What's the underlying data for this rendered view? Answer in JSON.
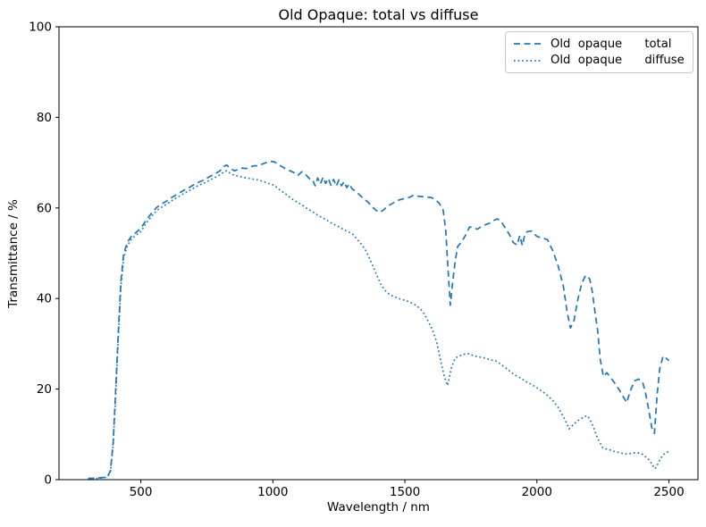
{
  "figure": {
    "background": "#ffffff",
    "text_color": "#000000",
    "spine_color": "#000000",
    "legend_border_color": "#c9c9c9"
  },
  "chart_data": {
    "type": "line",
    "title": "Old Opaque: total vs diffuse",
    "xlabel": "Wavelength / nm",
    "ylabel": "Transmittance / %",
    "xlim": [
      190,
      2610
    ],
    "ylim": [
      0,
      100
    ],
    "x_ticks": [
      500,
      1000,
      1500,
      2000,
      2500
    ],
    "y_ticks": [
      0,
      20,
      40,
      60,
      80,
      100
    ],
    "grid": false,
    "legend_position": "upper right",
    "series": [
      {
        "name": "Old  opaque      total",
        "style": "dashed",
        "color": "#1f77b4",
        "x": [
          300,
          320,
          340,
          360,
          375,
          385,
          395,
          405,
          415,
          425,
          435,
          450,
          465,
          480,
          500,
          520,
          540,
          560,
          580,
          600,
          620,
          640,
          660,
          680,
          700,
          720,
          740,
          760,
          780,
          800,
          815,
          825,
          840,
          855,
          870,
          885,
          900,
          915,
          930,
          945,
          960,
          975,
          990,
          1005,
          1020,
          1035,
          1050,
          1065,
          1080,
          1095,
          1110,
          1125,
          1140,
          1150,
          1160,
          1170,
          1180,
          1190,
          1200,
          1210,
          1220,
          1230,
          1240,
          1250,
          1260,
          1270,
          1280,
          1290,
          1300,
          1315,
          1330,
          1345,
          1360,
          1375,
          1390,
          1405,
          1420,
          1435,
          1450,
          1465,
          1480,
          1500,
          1520,
          1535,
          1550,
          1565,
          1580,
          1600,
          1615,
          1630,
          1645,
          1655,
          1665,
          1672,
          1680,
          1690,
          1700,
          1715,
          1730,
          1745,
          1760,
          1775,
          1790,
          1805,
          1820,
          1835,
          1850,
          1865,
          1880,
          1895,
          1910,
          1925,
          1935,
          1945,
          1955,
          1965,
          1980,
          2000,
          2020,
          2040,
          2060,
          2080,
          2100,
          2115,
          2127,
          2140,
          2155,
          2170,
          2185,
          2200,
          2210,
          2220,
          2230,
          2240,
          2252,
          2265,
          2280,
          2295,
          2310,
          2325,
          2340,
          2355,
          2370,
          2385,
          2400,
          2412,
          2425,
          2435,
          2445,
          2455,
          2465,
          2478,
          2490,
          2500
        ],
        "y": [
          0.3,
          0.3,
          0.4,
          0.5,
          0.8,
          2,
          8,
          20,
          33,
          44,
          50,
          52.5,
          53.8,
          54.5,
          55.5,
          57.3,
          58.8,
          60.1,
          60.9,
          61.6,
          62.4,
          63.1,
          63.8,
          64.4,
          65.1,
          65.7,
          66.2,
          66.9,
          67.5,
          68.2,
          69.2,
          69.5,
          68.7,
          68.2,
          68.5,
          68.8,
          68.7,
          69.1,
          69.3,
          69.3,
          69.7,
          70.0,
          70.3,
          70.2,
          69.6,
          69.1,
          68.6,
          68.2,
          67.8,
          67.2,
          68.0,
          67.3,
          66.4,
          66.3,
          64.9,
          66.6,
          65.3,
          66.8,
          65.4,
          66.5,
          65.0,
          66.3,
          64.8,
          66.2,
          64.9,
          65.8,
          64.5,
          65.3,
          64.2,
          63.6,
          62.8,
          62.0,
          61.3,
          60.3,
          59.5,
          59.0,
          59.6,
          60.4,
          60.9,
          61.4,
          61.8,
          62.1,
          62.4,
          62.9,
          62.6,
          62.5,
          62.4,
          62.3,
          61.9,
          61.0,
          59.5,
          55.0,
          45.0,
          38.5,
          43.0,
          48.0,
          51.5,
          52.5,
          54.0,
          55.8,
          55.6,
          55.3,
          55.9,
          56.3,
          56.6,
          57.2,
          57.6,
          57.0,
          55.6,
          54.2,
          52.4,
          51.8,
          53.9,
          51.7,
          54.4,
          54.8,
          54.9,
          53.7,
          53.4,
          53.0,
          50.6,
          47.3,
          42.8,
          36.8,
          33.5,
          35.0,
          39.8,
          43.4,
          45.1,
          44.3,
          41.5,
          37.0,
          33.0,
          26.5,
          22.8,
          23.6,
          22.5,
          21.3,
          20.0,
          18.5,
          17.0,
          19.8,
          21.8,
          22.2,
          21.6,
          19.0,
          15.0,
          11.5,
          10.2,
          18.5,
          24.5,
          27.3,
          26.8,
          26.3
        ]
      },
      {
        "name": "Old  opaque      diffuse",
        "style": "dotted",
        "color": "#1f77b4",
        "x": [
          300,
          320,
          340,
          360,
          375,
          385,
          395,
          405,
          415,
          425,
          435,
          450,
          465,
          480,
          500,
          520,
          540,
          560,
          580,
          600,
          620,
          640,
          660,
          680,
          700,
          720,
          740,
          760,
          780,
          800,
          815,
          825,
          840,
          855,
          870,
          885,
          900,
          915,
          930,
          945,
          960,
          975,
          990,
          1005,
          1020,
          1035,
          1050,
          1065,
          1080,
          1095,
          1110,
          1125,
          1140,
          1155,
          1170,
          1185,
          1200,
          1215,
          1230,
          1245,
          1260,
          1275,
          1290,
          1305,
          1320,
          1335,
          1350,
          1365,
          1380,
          1395,
          1410,
          1425,
          1440,
          1455,
          1470,
          1485,
          1500,
          1515,
          1530,
          1545,
          1560,
          1575,
          1590,
          1605,
          1620,
          1635,
          1650,
          1662,
          1675,
          1690,
          1705,
          1720,
          1735,
          1750,
          1765,
          1780,
          1800,
          1815,
          1830,
          1845,
          1860,
          1875,
          1890,
          1905,
          1920,
          1940,
          1960,
          1980,
          2000,
          2020,
          2040,
          2060,
          2080,
          2095,
          2110,
          2122,
          2135,
          2150,
          2165,
          2180,
          2192,
          2205,
          2215,
          2225,
          2235,
          2250,
          2265,
          2280,
          2295,
          2310,
          2325,
          2340,
          2355,
          2370,
          2385,
          2400,
          2412,
          2425,
          2438,
          2448,
          2458,
          2468,
          2478,
          2490,
          2500
        ],
        "y": [
          0.2,
          0.2,
          0.3,
          0.4,
          0.7,
          1.8,
          7.5,
          19,
          32,
          43,
          49,
          51.8,
          53.2,
          53.9,
          54.8,
          56.6,
          58.1,
          59.4,
          60.2,
          60.9,
          61.7,
          62.4,
          63.1,
          63.7,
          64.4,
          65.0,
          65.5,
          66.1,
          66.7,
          67.3,
          68.0,
          68.2,
          67.6,
          67.2,
          67.0,
          66.8,
          66.6,
          66.5,
          66.3,
          66.2,
          65.9,
          65.6,
          65.3,
          65.0,
          64.3,
          63.6,
          63.0,
          62.3,
          61.7,
          61.2,
          60.7,
          60.0,
          59.5,
          59.0,
          58.4,
          57.9,
          57.5,
          56.9,
          56.4,
          56.0,
          55.5,
          55.0,
          54.6,
          54.1,
          53.0,
          52.0,
          50.8,
          49.0,
          47.0,
          45.0,
          43.0,
          41.8,
          41.0,
          40.5,
          40.2,
          39.8,
          39.6,
          39.3,
          38.9,
          38.4,
          37.6,
          36.5,
          34.8,
          33.0,
          30.5,
          26.5,
          22.5,
          20.8,
          24.5,
          26.8,
          27.3,
          27.6,
          27.9,
          27.6,
          27.3,
          27.1,
          26.9,
          26.6,
          26.4,
          26.2,
          25.6,
          25.0,
          24.3,
          23.6,
          23.0,
          22.4,
          21.6,
          21.0,
          20.3,
          19.5,
          18.6,
          17.5,
          16.0,
          14.5,
          12.8,
          11.2,
          12.0,
          12.8,
          13.4,
          13.9,
          14.1,
          12.8,
          11.5,
          9.8,
          8.6,
          7.0,
          6.7,
          6.5,
          6.2,
          6.0,
          5.8,
          5.7,
          5.8,
          5.9,
          5.9,
          5.6,
          5.0,
          4.4,
          3.2,
          2.4,
          3.5,
          4.6,
          5.5,
          6.0,
          6.2
        ]
      }
    ]
  }
}
